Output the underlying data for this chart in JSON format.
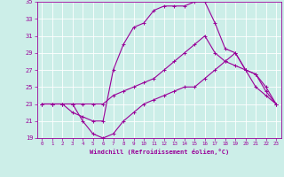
{
  "xlabel": "Windchill (Refroidissement éolien,°C)",
  "xlim": [
    -0.5,
    23.5
  ],
  "ylim": [
    19,
    35
  ],
  "xticks": [
    0,
    1,
    2,
    3,
    4,
    5,
    6,
    7,
    8,
    9,
    10,
    11,
    12,
    13,
    14,
    15,
    16,
    17,
    18,
    19,
    20,
    21,
    22,
    23
  ],
  "yticks": [
    19,
    21,
    23,
    25,
    27,
    29,
    31,
    33,
    35
  ],
  "bg_color": "#cceee8",
  "line_color": "#990099",
  "grid_color": "#aadddd",
  "line1_x": [
    0,
    1,
    2,
    3,
    4,
    5,
    6,
    7,
    8,
    9,
    10,
    11,
    12,
    13,
    14,
    15,
    16,
    17,
    18,
    19,
    20,
    21,
    22,
    23
  ],
  "line1_y": [
    23,
    23,
    23,
    23,
    21,
    19.5,
    19,
    19.5,
    21,
    22,
    23,
    23.5,
    24,
    24.5,
    25,
    25,
    26,
    27,
    28,
    29,
    27,
    25,
    24,
    23
  ],
  "line2_x": [
    0,
    1,
    2,
    3,
    4,
    5,
    6,
    7,
    8,
    9,
    10,
    11,
    12,
    13,
    14,
    15,
    16,
    17,
    18,
    19,
    20,
    21,
    22,
    23
  ],
  "line2_y": [
    23,
    23,
    23,
    23,
    23,
    23,
    23,
    24,
    24.5,
    25,
    25.5,
    26,
    27,
    28,
    29,
    30,
    31,
    29,
    28,
    27.5,
    27,
    26.5,
    25,
    23
  ],
  "line3_x": [
    0,
    1,
    2,
    3,
    4,
    5,
    6,
    7,
    8,
    9,
    10,
    11,
    12,
    13,
    14,
    15,
    16,
    17,
    18,
    19,
    20,
    21,
    22,
    23
  ],
  "line3_y": [
    23,
    23,
    23,
    22,
    21.5,
    21,
    21,
    27,
    30,
    32,
    32.5,
    34,
    34.5,
    34.5,
    34.5,
    35,
    35,
    32.5,
    29.5,
    29,
    27,
    26.5,
    24.5,
    23
  ]
}
